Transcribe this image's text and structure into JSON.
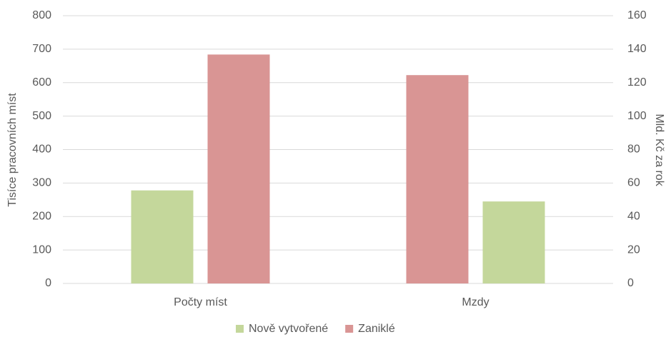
{
  "chart_data": {
    "type": "bar",
    "categories": [
      "Počty míst",
      "Mzdy"
    ],
    "category_axes": [
      "y",
      "y2"
    ],
    "series": [
      {
        "name": "Nově vytvořené",
        "color": "#c4d79b",
        "values": [
          278,
          49
        ]
      },
      {
        "name": "Zaniklé",
        "color": "#d99594",
        "values": [
          684,
          124.5
        ]
      }
    ],
    "ylabel": "Tisíce pracovních míst",
    "y2label": "Mld. Kč za rok",
    "ylim": [
      0,
      800
    ],
    "yticks": [
      0,
      100,
      200,
      300,
      400,
      500,
      600,
      700,
      800
    ],
    "y2lim": [
      0,
      160
    ],
    "y2ticks": [
      0,
      20,
      40,
      60,
      80,
      100,
      120,
      140,
      160
    ],
    "grid": true,
    "legend": "bottom"
  }
}
